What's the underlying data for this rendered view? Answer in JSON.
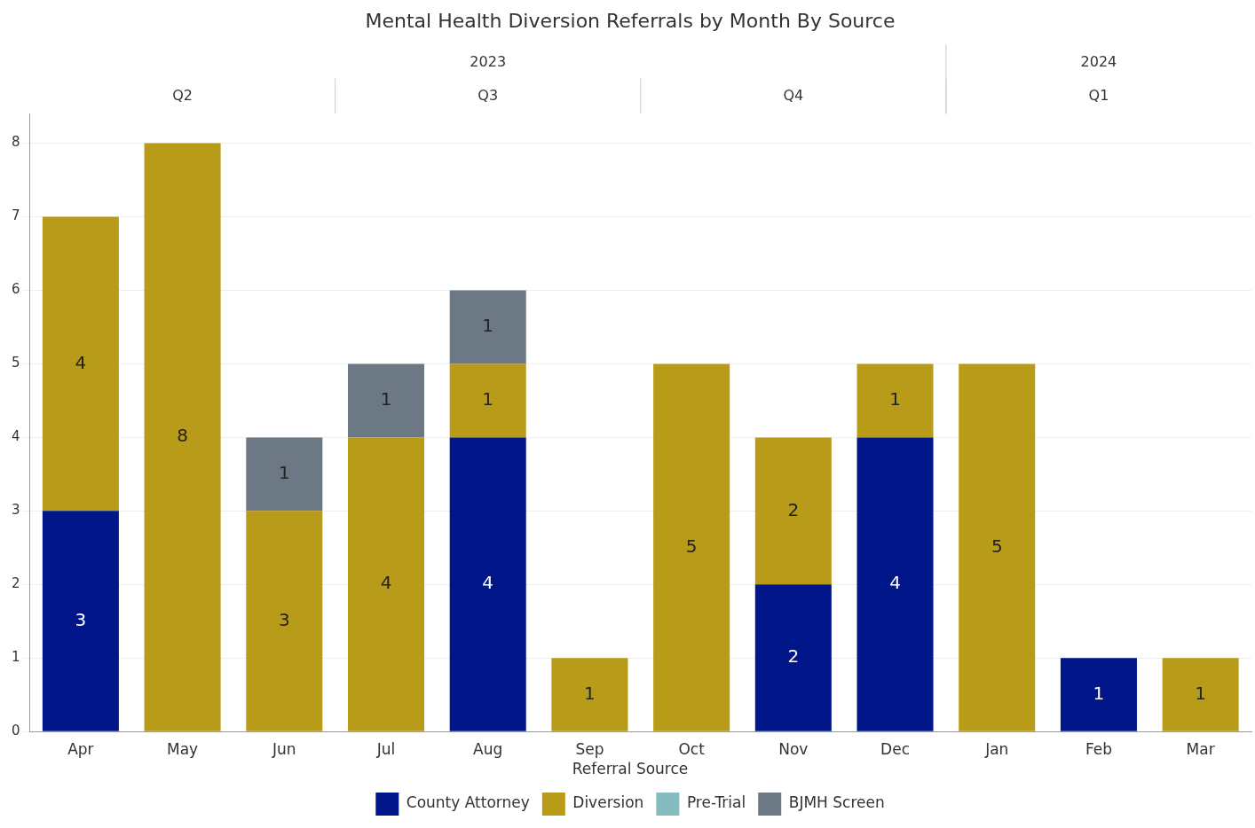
{
  "chart_data": {
    "type": "bar",
    "title": "Mental Health Diversion Referrals by Month By Source",
    "legend_title": "Referral Source",
    "categories": [
      "Apr",
      "May",
      "Jun",
      "Jul",
      "Aug",
      "Sep",
      "Oct",
      "Nov",
      "Dec",
      "Jan",
      "Feb",
      "Mar"
    ],
    "stacked": true,
    "ylim": [
      0,
      8.4
    ],
    "yticks": [
      0,
      1,
      2,
      3,
      4,
      5,
      6,
      7,
      8
    ],
    "grid": "y",
    "legend": "bottom",
    "series": [
      {
        "name": "County Attorney",
        "color": "#001689",
        "values": [
          3,
          0,
          0,
          0,
          4,
          0,
          0,
          2,
          4,
          0,
          1,
          0
        ],
        "value_labels": [
          "3",
          null,
          null,
          null,
          "4",
          null,
          null,
          "2",
          "4",
          null,
          "1",
          null
        ]
      },
      {
        "name": "Diversion",
        "color": "#b89b18",
        "values": [
          4,
          8,
          3,
          4,
          1,
          1,
          5,
          2,
          1,
          5,
          0,
          1
        ],
        "value_labels": [
          "4",
          "8",
          "3",
          "4",
          "1",
          "1",
          "5",
          "2",
          "1",
          "5",
          null,
          "1"
        ]
      },
      {
        "name": "Pre-Trial",
        "color": "#84bcbf",
        "values": [
          0,
          0,
          0,
          0,
          0,
          0,
          0,
          0,
          0,
          0,
          0,
          0
        ],
        "value_labels": [
          null,
          null,
          null,
          null,
          null,
          null,
          null,
          null,
          null,
          null,
          null,
          null
        ]
      },
      {
        "name": "BJMH Screen",
        "color": "#6c7883",
        "values": [
          0,
          0,
          1,
          1,
          1,
          0,
          0,
          0,
          0,
          0,
          0,
          0
        ],
        "value_labels": [
          null,
          null,
          "1",
          "1",
          "1",
          null,
          null,
          null,
          null,
          null,
          null,
          null
        ]
      }
    ],
    "annotations": [
      "2023",
      "2024",
      "Q2",
      "Q3",
      "Q4",
      "Q1"
    ]
  }
}
